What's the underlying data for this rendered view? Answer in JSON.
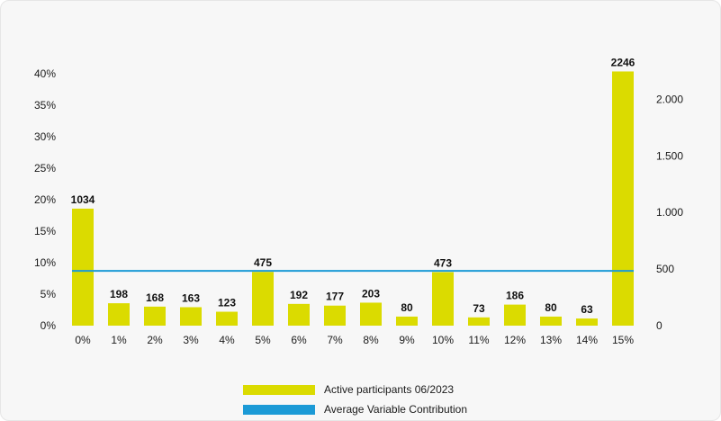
{
  "chart_data": {
    "type": "bar",
    "categories": [
      "0%",
      "1%",
      "2%",
      "3%",
      "4%",
      "5%",
      "6%",
      "7%",
      "8%",
      "9%",
      "10%",
      "11%",
      "12%",
      "13%",
      "14%",
      "15%"
    ],
    "series": [
      {
        "name": "Active participants 06/2023",
        "values": [
          1034,
          198,
          168,
          163,
          123,
          475,
          192,
          177,
          203,
          80,
          473,
          73,
          186,
          80,
          63,
          2246
        ],
        "axis": "right",
        "color": "#dbdb00"
      },
      {
        "name": "Average Variable Contribution",
        "type": "line",
        "value_percent": 8.7,
        "axis": "left",
        "color": "#1c9ad6"
      }
    ],
    "left_axis": {
      "ticks": [
        "0%",
        "5%",
        "10%",
        "15%",
        "20%",
        "25%",
        "30%",
        "35%",
        "40%"
      ],
      "range": [
        0,
        40
      ]
    },
    "right_axis": {
      "ticks": [
        "0",
        "500",
        "1.000",
        "1.500",
        "2.000"
      ],
      "tick_values": [
        0,
        500,
        1000,
        1500,
        2000
      ]
    },
    "legend_position": "bottom-center",
    "grid": false
  }
}
